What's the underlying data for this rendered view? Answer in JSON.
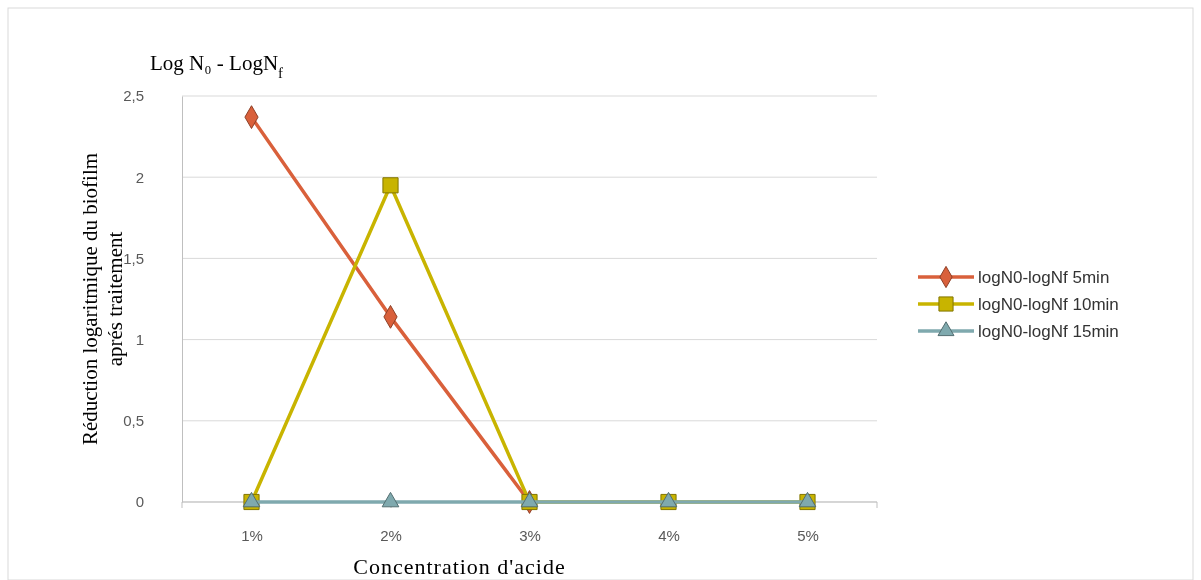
{
  "chart_data": {
    "type": "line",
    "title": "Log N₀ - LogN$_{f}$",
    "xlabel": "Concentration d'acide",
    "ylabel": "Réduction logaritmique du biofilm aprés traitement",
    "categories": [
      "1%",
      "2%",
      "3%",
      "4%",
      "5%"
    ],
    "series": [
      {
        "name": "logN0-logNf 5min",
        "color": "#d9603b",
        "marker": "diamond",
        "values": [
          2.37,
          1.14,
          0,
          null,
          null
        ]
      },
      {
        "name": "logN0-logNf 10min",
        "color": "#c8b400",
        "marker": "square",
        "values": [
          0,
          1.95,
          0,
          0,
          0
        ]
      },
      {
        "name": "logN0-logNf 15min",
        "color": "#7fa9ae",
        "marker": "triangle",
        "values": [
          0,
          0,
          0,
          0,
          0
        ]
      }
    ],
    "ylim": [
      0,
      2.5
    ],
    "yticks": [
      0,
      {
        "value": 0.5,
        "label": "0,5"
      },
      1,
      {
        "value": 1.5,
        "label": "1,5"
      },
      2,
      {
        "value": 2.5,
        "label": "2,5"
      }
    ],
    "grid": "y",
    "legend": "right",
    "line_style": "solid"
  }
}
